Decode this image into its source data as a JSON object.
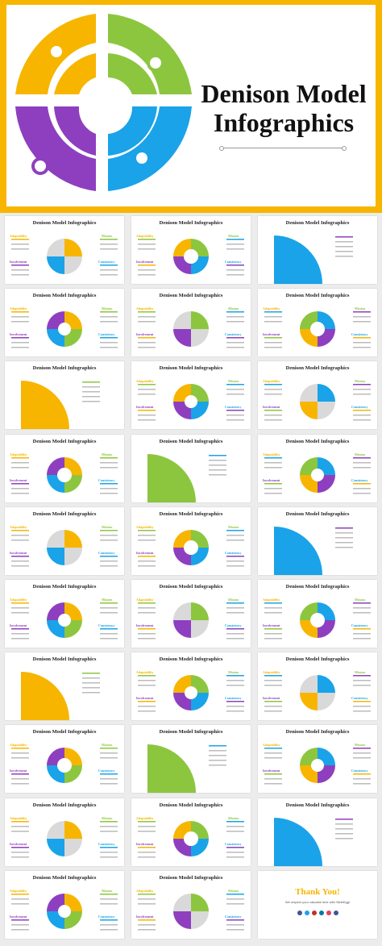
{
  "hero": {
    "title_line1": "Denison Model",
    "title_line2": "Infographics"
  },
  "slide_title": "Denison Model Infographics",
  "labels": {
    "adaptability": "Adaptability",
    "mission": "Mission",
    "involvement": "Involvement",
    "consistency": "Consistency"
  },
  "thank_you": {
    "title": "Thank You!",
    "subtitle": "We respect your valuable time with SlideEgg!"
  },
  "colors": {
    "yellow": "#f7b500",
    "green": "#8cc63f",
    "blue": "#1aa3e8",
    "purple": "#8e3fbf",
    "gray": "#d9d9d9"
  }
}
